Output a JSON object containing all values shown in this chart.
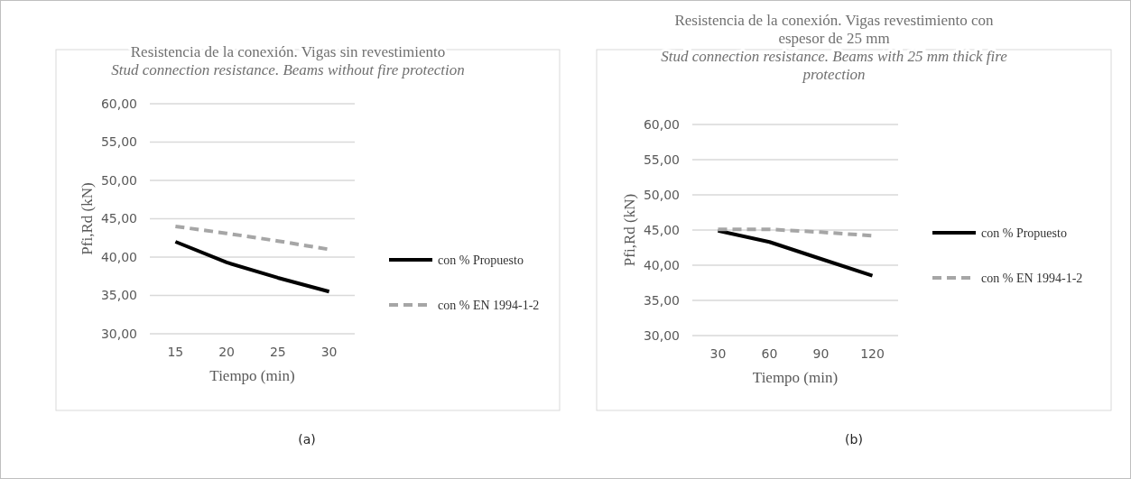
{
  "chart_data": [
    {
      "type": "line",
      "title": "Resistencia de la conexión. Vigas sin revestimiento",
      "subtitle": "Stud connection resistance. Beams without fire protection",
      "xlabel": "Tiempo (min)",
      "ylabel": "Pfi,Rd (kN)",
      "categories": [
        "15",
        "20",
        "25",
        "30"
      ],
      "series": [
        {
          "name": "con % Propuesto",
          "color": "#000000",
          "line_style": "solid",
          "values": [
            42.0,
            39.3,
            37.3,
            35.5
          ]
        },
        {
          "name": "con % EN 1994-1-2",
          "color": "#a6a6a6",
          "line_style": "dashed",
          "values": [
            44.0,
            43.1,
            42.1,
            41.0
          ]
        }
      ],
      "ylim": [
        30,
        60
      ],
      "yticks": [
        {
          "value": 30,
          "label": "30,00"
        },
        {
          "value": 35,
          "label": "35,00"
        },
        {
          "value": 40,
          "label": "40,00"
        },
        {
          "value": 45,
          "label": "45,00"
        },
        {
          "value": 50,
          "label": "50,00"
        },
        {
          "value": 55,
          "label": "55,00"
        },
        {
          "value": 60,
          "label": "60,00"
        }
      ],
      "grid": "y",
      "legend": "right",
      "marker": "none",
      "annotations": [
        "(a)"
      ]
    },
    {
      "type": "line",
      "title": "Resistencia de la conexión. Vigas revestimiento con espesor de 25 mm",
      "subtitle": "Stud connection resistance. Beams with 25 mm thick fire protection",
      "xlabel": "Tiempo (min)",
      "ylabel": "Pfi,Rd (kN)",
      "categories": [
        "30",
        "60",
        "90",
        "120"
      ],
      "series": [
        {
          "name": "con % Propuesto",
          "color": "#000000",
          "line_style": "solid",
          "values": [
            44.9,
            43.3,
            40.9,
            38.5
          ]
        },
        {
          "name": "con % EN 1994-1-2",
          "color": "#a6a6a6",
          "line_style": "dashed",
          "values": [
            45.1,
            45.1,
            44.7,
            44.2
          ]
        }
      ],
      "ylim": [
        30,
        60
      ],
      "yticks": [
        {
          "value": 30,
          "label": "30,00"
        },
        {
          "value": 35,
          "label": "35,00"
        },
        {
          "value": 40,
          "label": "40,00"
        },
        {
          "value": 45,
          "label": "45,00"
        },
        {
          "value": 50,
          "label": "50,00"
        },
        {
          "value": 55,
          "label": "55,00"
        },
        {
          "value": 60,
          "label": "60,00"
        }
      ],
      "grid": "y",
      "legend": "right",
      "marker": "none",
      "annotations": [
        "(b)"
      ]
    }
  ]
}
